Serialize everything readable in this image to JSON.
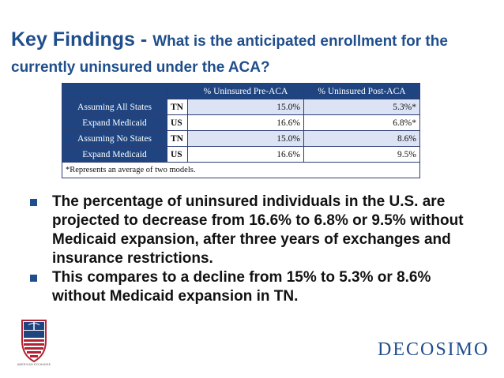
{
  "slide": {
    "title_main": "Key Findings - ",
    "title_sub": "What is the anticipated enrollment for the currently uninsured under the ACA?",
    "colors": {
      "primary_blue": "#1f4e8c",
      "table_header": "#1f4480",
      "cell_tint": "#dce3f4"
    }
  },
  "table": {
    "headers": [
      "",
      "",
      "% Uninsured Pre-ACA",
      "% Uninsured Post-ACA"
    ],
    "groups": [
      {
        "scenario_line1": "Assuming All States",
        "scenario_line2": "Expand Medicaid",
        "rows": [
          {
            "region": "TN",
            "pre": "15.0%",
            "post": "5.3%*"
          },
          {
            "region": "US",
            "pre": "16.6%",
            "post": "6.8%*"
          }
        ]
      },
      {
        "scenario_line1": "Assuming No States",
        "scenario_line2": "Expand Medicaid",
        "rows": [
          {
            "region": "TN",
            "pre": "15.0%",
            "post": "8.6%"
          },
          {
            "region": "US",
            "pre": "16.6%",
            "post": "9.5%"
          }
        ]
      }
    ],
    "footnote": "*Represents an average of two models."
  },
  "bullets": [
    "The percentage of uninsured individuals in the U.S. are projected to decrease from 16.6% to 6.8% or 9.5% without Medicaid expansion, after three years of exchanges and insurance restrictions.",
    "This compares to a decline from 15% to 5.3% or 8.6% without Medicaid expansion in TN."
  ],
  "footer": {
    "left_logo_text": "AMERICAN EXCHANGE",
    "left_logo_icon": "caduceus-shield-icon",
    "brand": "DECOSIMO"
  }
}
